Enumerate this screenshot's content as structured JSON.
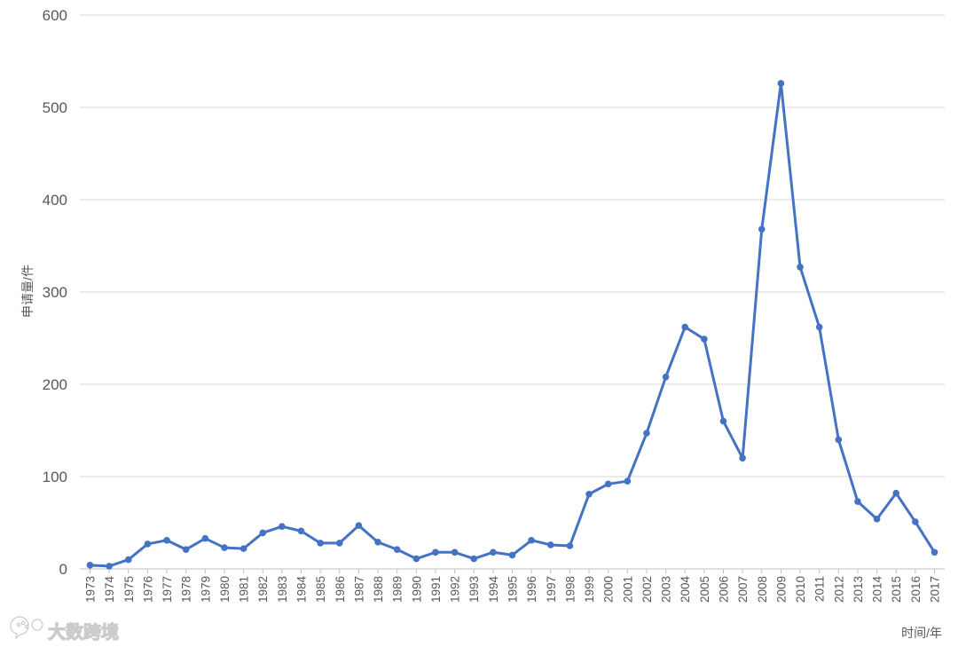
{
  "chart_data": {
    "type": "line",
    "title": "",
    "xlabel": "时间/年",
    "ylabel": "申请量/件",
    "ylim": [
      0,
      600
    ],
    "yticks": [
      0,
      100,
      200,
      300,
      400,
      500,
      600
    ],
    "grid": true,
    "legend": "none",
    "line_color": "#4472C4",
    "categories": [
      "1973",
      "1974",
      "1975",
      "1976",
      "1977",
      "1978",
      "1979",
      "1980",
      "1981",
      "1982",
      "1983",
      "1984",
      "1985",
      "1986",
      "1987",
      "1988",
      "1989",
      "1990",
      "1991",
      "1992",
      "1993",
      "1994",
      "1995",
      "1996",
      "1997",
      "1998",
      "1999",
      "2000",
      "2001",
      "2002",
      "2003",
      "2004",
      "2005",
      "2006",
      "2007",
      "2008",
      "2009",
      "2010",
      "2011",
      "2012",
      "2013",
      "2014",
      "2015",
      "2016",
      "2017"
    ],
    "series": [
      {
        "values": [
          4,
          3,
          10,
          27,
          31,
          21,
          33,
          23,
          22,
          39,
          46,
          41,
          28,
          28,
          47,
          29,
          21,
          11,
          18,
          18,
          11,
          18,
          15,
          31,
          26,
          25,
          81,
          92,
          95,
          147,
          208,
          262,
          249,
          160,
          120,
          368,
          526,
          327,
          262,
          140,
          73,
          54,
          82,
          51,
          18
        ]
      }
    ]
  },
  "watermark": {
    "text": "大数跨境",
    "logo_icon": "paw-chat-logo-icon"
  }
}
